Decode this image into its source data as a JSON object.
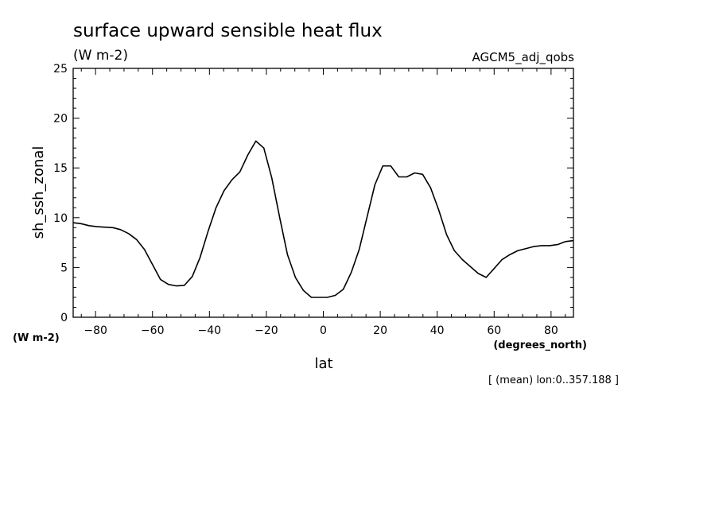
{
  "title": "surface upward sensible heat flux",
  "title_units": "(W m-2)",
  "dataset": "AGCM5_adj_qobs",
  "ylabel": "sh_ssh_zonal",
  "yunits": "(W m-2)",
  "xlabel": "lat",
  "xunits": "(degrees_north)",
  "footnote": "[ (mean) lon:0..357.188 ]",
  "colors": {
    "line": "#000000",
    "text": "#000000",
    "background": "#ffffff"
  },
  "chart_data": {
    "type": "line",
    "title": "surface upward sensible heat flux",
    "xlabel": "lat",
    "ylabel": "sh_ssh_zonal",
    "xlim": [
      -87.86,
      87.86
    ],
    "ylim": [
      0,
      25
    ],
    "xticks": [
      -80,
      -60,
      -40,
      -20,
      0,
      20,
      40,
      60,
      80
    ],
    "yticks": [
      0,
      5,
      10,
      15,
      20,
      25
    ],
    "grid": false,
    "x": [
      -87.86,
      -85.1,
      -82.3,
      -79.5,
      -76.7,
      -73.9,
      -71.2,
      -68.4,
      -65.6,
      -62.8,
      -60.0,
      -57.2,
      -54.4,
      -51.6,
      -48.8,
      -46.0,
      -43.3,
      -40.5,
      -37.7,
      -34.9,
      -32.1,
      -29.3,
      -26.5,
      -23.7,
      -20.9,
      -18.1,
      -15.3,
      -12.6,
      -9.8,
      -7.0,
      -4.2,
      -1.4,
      1.4,
      4.2,
      7.0,
      9.8,
      12.6,
      15.3,
      18.1,
      20.9,
      23.7,
      26.5,
      29.3,
      32.1,
      34.9,
      37.7,
      40.5,
      43.3,
      46.0,
      48.8,
      51.6,
      54.4,
      57.2,
      60.0,
      62.8,
      65.6,
      68.4,
      71.2,
      73.9,
      76.7,
      79.5,
      82.3,
      85.1,
      87.86
    ],
    "y": [
      9.5,
      9.4,
      9.2,
      9.1,
      9.05,
      9.0,
      8.8,
      8.4,
      7.8,
      6.8,
      5.3,
      3.8,
      3.3,
      3.15,
      3.2,
      4.1,
      6.0,
      8.6,
      11.0,
      12.7,
      13.8,
      14.6,
      16.3,
      17.7,
      17.0,
      14.0,
      10.0,
      6.3,
      4.0,
      2.7,
      2.0,
      2.0,
      2.0,
      2.2,
      2.8,
      4.5,
      6.8,
      10.0,
      13.3,
      15.2,
      15.2,
      14.1,
      14.1,
      14.5,
      14.35,
      13.0,
      10.8,
      8.3,
      6.7,
      5.8,
      5.1,
      4.4,
      4.0,
      4.9,
      5.8,
      6.3,
      6.7,
      6.9,
      7.1,
      7.2,
      7.2,
      7.3,
      7.6,
      7.7
    ]
  }
}
